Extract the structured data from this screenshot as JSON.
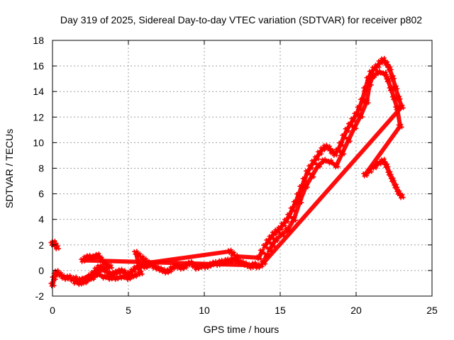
{
  "chart_data": {
    "type": "scatter",
    "title": "Day 319 of 2025, Sidereal Day-to-day VTEC variation (SDTVAR) for receiver p802",
    "xlabel": "GPS time / hours",
    "ylabel": "SDTVAR / TECUs",
    "xlim": [
      0,
      25
    ],
    "ylim": [
      -2,
      18
    ],
    "xticks": [
      0,
      5,
      10,
      15,
      20,
      25
    ],
    "yticks": [
      -2,
      0,
      2,
      4,
      6,
      8,
      10,
      12,
      14,
      16,
      18
    ],
    "grid": true,
    "marker": "+",
    "series": [
      {
        "name": "SDTVAR",
        "color": "#ff0000",
        "points": [
          [
            0.0,
            2.1
          ],
          [
            0.1,
            2.2
          ],
          [
            0.2,
            2.0
          ],
          [
            0.3,
            1.8
          ],
          [
            0.0,
            -1.1
          ],
          [
            0.1,
            -0.6
          ],
          [
            0.2,
            -0.3
          ],
          [
            0.3,
            -0.1
          ],
          [
            0.5,
            -0.3
          ],
          [
            0.7,
            -0.5
          ],
          [
            0.9,
            -0.6
          ],
          [
            1.1,
            -0.5
          ],
          [
            1.3,
            -0.7
          ],
          [
            1.5,
            -0.6
          ],
          [
            1.7,
            -0.8
          ],
          [
            1.9,
            -0.7
          ],
          [
            2.1,
            -0.9
          ],
          [
            2.3,
            -0.6
          ],
          [
            2.5,
            -0.4
          ],
          [
            2.7,
            -0.2
          ],
          [
            2.9,
            0.1
          ],
          [
            3.1,
            0.3
          ],
          [
            3.3,
            0.2
          ],
          [
            3.5,
            0.0
          ],
          [
            3.7,
            -0.2
          ],
          [
            3.9,
            -0.3
          ],
          [
            4.1,
            -0.2
          ],
          [
            4.3,
            -0.1
          ],
          [
            4.5,
            0.0
          ],
          [
            4.7,
            -0.1
          ],
          [
            4.9,
            -0.3
          ],
          [
            5.1,
            -0.2
          ],
          [
            5.3,
            0.0
          ],
          [
            5.5,
            0.2
          ],
          [
            5.7,
            0.3
          ],
          [
            5.9,
            0.4
          ],
          [
            6.1,
            0.3
          ],
          [
            6.3,
            0.4
          ],
          [
            6.5,
            0.5
          ],
          [
            6.7,
            0.3
          ],
          [
            6.9,
            0.2
          ],
          [
            7.1,
            0.1
          ],
          [
            7.3,
            0.0
          ],
          [
            7.5,
            -0.1
          ],
          [
            7.7,
            0.0
          ],
          [
            7.9,
            0.2
          ],
          [
            8.1,
            0.4
          ],
          [
            8.3,
            0.3
          ],
          [
            8.5,
            0.2
          ],
          [
            8.7,
            0.3
          ],
          [
            8.9,
            0.5
          ],
          [
            9.1,
            0.6
          ],
          [
            9.3,
            0.4
          ],
          [
            9.5,
            0.2
          ],
          [
            9.7,
            0.3
          ],
          [
            9.9,
            0.4
          ],
          [
            10.1,
            0.3
          ],
          [
            10.3,
            0.4
          ],
          [
            10.5,
            0.5
          ],
          [
            10.7,
            0.6
          ],
          [
            10.9,
            0.5
          ],
          [
            11.1,
            0.7
          ],
          [
            11.3,
            0.6
          ],
          [
            11.5,
            0.8
          ],
          [
            11.7,
            0.7
          ],
          [
            11.9,
            0.9
          ],
          [
            12.1,
            0.8
          ],
          [
            12.3,
            0.7
          ],
          [
            12.5,
            0.6
          ],
          [
            12.7,
            0.5
          ],
          [
            12.9,
            0.4
          ],
          [
            13.1,
            0.3
          ],
          [
            13.3,
            0.5
          ],
          [
            13.5,
            0.3
          ],
          [
            13.7,
            0.4
          ],
          [
            2.0,
            0.8
          ],
          [
            2.2,
            1.0
          ],
          [
            2.4,
            1.1
          ],
          [
            2.6,
            1.0
          ],
          [
            2.8,
            1.1
          ],
          [
            3.0,
            1.2
          ],
          [
            3.2,
            0.9
          ],
          [
            3.4,
            0.6
          ],
          [
            3.6,
            0.4
          ],
          [
            3.8,
            0.3
          ],
          [
            1.5,
            -0.9
          ],
          [
            1.8,
            -1.0
          ],
          [
            2.2,
            -0.8
          ],
          [
            2.6,
            -0.6
          ],
          [
            3.0,
            -0.3
          ],
          [
            3.4,
            -0.5
          ],
          [
            3.8,
            -0.6
          ],
          [
            4.2,
            -0.6
          ],
          [
            4.6,
            -0.5
          ],
          [
            5.0,
            -0.6
          ],
          [
            5.4,
            -0.4
          ],
          [
            5.8,
            -0.2
          ],
          [
            5.5,
            1.4
          ],
          [
            5.7,
            1.2
          ],
          [
            5.9,
            1.0
          ],
          [
            6.1,
            0.8
          ],
          [
            6.3,
            0.6
          ],
          [
            11.7,
            1.5
          ],
          [
            11.9,
            1.3
          ],
          [
            12.1,
            1.1
          ],
          [
            13.6,
            1.0
          ],
          [
            13.8,
            1.5
          ],
          [
            14.0,
            1.9
          ],
          [
            14.2,
            2.3
          ],
          [
            14.4,
            2.6
          ],
          [
            14.6,
            2.9
          ],
          [
            14.8,
            3.1
          ],
          [
            15.0,
            3.3
          ],
          [
            15.2,
            3.6
          ],
          [
            15.4,
            3.9
          ],
          [
            15.6,
            4.3
          ],
          [
            15.8,
            4.8
          ],
          [
            16.0,
            5.3
          ],
          [
            16.2,
            5.9
          ],
          [
            16.4,
            6.5
          ],
          [
            16.6,
            7.1
          ],
          [
            16.8,
            7.7
          ],
          [
            17.0,
            8.1
          ],
          [
            17.2,
            8.5
          ],
          [
            17.4,
            8.8
          ],
          [
            17.6,
            9.2
          ],
          [
            17.8,
            9.5
          ],
          [
            18.0,
            9.7
          ],
          [
            18.2,
            9.6
          ],
          [
            18.4,
            9.3
          ],
          [
            18.6,
            9.1
          ],
          [
            18.8,
            9.4
          ],
          [
            19.0,
            9.9
          ],
          [
            19.2,
            10.5
          ],
          [
            19.4,
            11.0
          ],
          [
            19.6,
            11.4
          ],
          [
            19.8,
            11.8
          ],
          [
            20.0,
            12.2
          ],
          [
            20.2,
            12.7
          ],
          [
            20.4,
            13.3
          ],
          [
            20.6,
            14.2
          ],
          [
            20.8,
            15.0
          ],
          [
            21.0,
            15.5
          ],
          [
            21.2,
            15.8
          ],
          [
            21.4,
            16.0
          ],
          [
            21.6,
            16.3
          ],
          [
            21.8,
            16.5
          ],
          [
            22.0,
            16.2
          ],
          [
            22.2,
            15.8
          ],
          [
            22.4,
            15.1
          ],
          [
            22.6,
            14.3
          ],
          [
            22.8,
            13.5
          ],
          [
            23.0,
            12.8
          ],
          [
            13.9,
            0.6
          ],
          [
            14.1,
            1.2
          ],
          [
            14.3,
            1.6
          ],
          [
            14.5,
            2.0
          ],
          [
            14.7,
            2.4
          ],
          [
            15.1,
            2.8
          ],
          [
            15.5,
            3.2
          ],
          [
            15.9,
            4.0
          ],
          [
            16.3,
            5.4
          ],
          [
            16.7,
            6.6
          ],
          [
            17.1,
            7.4
          ],
          [
            17.5,
            8.2
          ],
          [
            17.9,
            8.6
          ],
          [
            18.3,
            8.5
          ],
          [
            18.7,
            8.2
          ],
          [
            19.1,
            9.2
          ],
          [
            19.5,
            10.2
          ],
          [
            19.9,
            11.2
          ],
          [
            20.3,
            12.1
          ],
          [
            20.7,
            13.2
          ],
          [
            20.9,
            14.6
          ],
          [
            21.1,
            15.2
          ],
          [
            21.5,
            15.5
          ],
          [
            21.9,
            15.4
          ],
          [
            22.1,
            14.9
          ],
          [
            22.3,
            14.2
          ],
          [
            22.5,
            13.5
          ],
          [
            22.7,
            12.7
          ],
          [
            22.9,
            11.3
          ],
          [
            20.6,
            7.5
          ],
          [
            20.9,
            7.8
          ],
          [
            21.2,
            8.1
          ],
          [
            21.5,
            8.4
          ],
          [
            21.8,
            8.6
          ],
          [
            22.0,
            8.2
          ],
          [
            22.2,
            7.6
          ],
          [
            22.4,
            7.1
          ],
          [
            22.6,
            6.6
          ],
          [
            22.8,
            6.1
          ],
          [
            23.0,
            5.8
          ]
        ]
      }
    ]
  }
}
